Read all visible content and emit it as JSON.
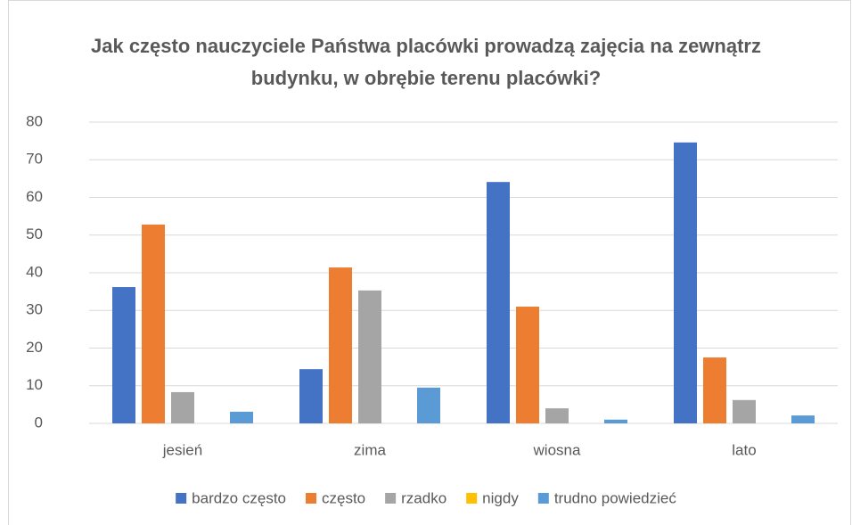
{
  "chart_data": {
    "type": "bar",
    "title": "Jak często nauczyciele Państwa placówki prowadzą zajęcia na zewnątrz budynku, w obrębie terenu placówki?",
    "categories": [
      "jesień",
      "zima",
      "wiosna",
      "lato"
    ],
    "series": [
      {
        "name": "bardzo często",
        "color": "#4472c4",
        "values": [
          36.2,
          14.4,
          64.1,
          74.6
        ]
      },
      {
        "name": "często",
        "color": "#ed7d31",
        "values": [
          52.8,
          41.4,
          31,
          17.5
        ]
      },
      {
        "name": "rzadko",
        "color": "#a5a5a5",
        "values": [
          8.3,
          35.3,
          4,
          6.2
        ]
      },
      {
        "name": "nigdy",
        "color": "#ffc000",
        "values": [
          0,
          0,
          0,
          0
        ]
      },
      {
        "name": "trudno powiedzieć",
        "color": "#5b9bd5",
        "values": [
          3.1,
          9.5,
          1,
          2.1
        ]
      }
    ],
    "ylim": [
      0,
      80
    ],
    "yticks": [
      0,
      10,
      20,
      30,
      40,
      50,
      60,
      70,
      80
    ],
    "grid": true,
    "legend": "bottom"
  }
}
